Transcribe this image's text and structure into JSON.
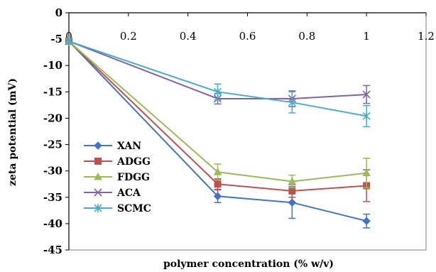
{
  "chart_data": {
    "type": "line",
    "title": "",
    "xlabel": "polymer concentration (% w/v)",
    "ylabel": "zeta potential (mV)",
    "xlim": [
      0,
      1.2
    ],
    "ylim": [
      -45,
      0
    ],
    "x_ticks": [
      "0",
      "0.2",
      "0.4",
      "0.6",
      "0.8",
      "1",
      "1.2"
    ],
    "y_ticks": [
      "0",
      "-5",
      "-10",
      "-15",
      "-20",
      "-25",
      "-30",
      "-35",
      "-40",
      "-45"
    ],
    "x_axis_position": "top",
    "grid": false,
    "legend_position": "bottom-left",
    "x": [
      0,
      0.5,
      0.75,
      1
    ],
    "series": [
      {
        "name": "XAN",
        "color": "#4472C4",
        "marker": "diamond",
        "values": [
          -5.4,
          -34.8,
          -36.0,
          -39.5
        ],
        "errors": [
          0.5,
          1.2,
          3.0,
          1.3
        ]
      },
      {
        "name": "ADGG",
        "color": "#C0504D",
        "marker": "square",
        "values": [
          -5.4,
          -32.5,
          -33.8,
          -32.8
        ],
        "errors": [
          0.5,
          1.0,
          1.2,
          3.0
        ]
      },
      {
        "name": "FDGG",
        "color": "#9BBB59",
        "marker": "triangle",
        "values": [
          -5.4,
          -30.2,
          -32.0,
          -30.4
        ],
        "errors": [
          0.5,
          1.5,
          1.2,
          2.8
        ]
      },
      {
        "name": "ACA",
        "color": "#8064A2",
        "marker": "x",
        "values": [
          -5.4,
          -16.3,
          -16.3,
          -15.5
        ],
        "errors": [
          0.5,
          1.0,
          1.5,
          1.7
        ]
      },
      {
        "name": "SCMC",
        "color": "#4BACC6",
        "marker": "asterisk",
        "values": [
          -5.4,
          -15.0,
          -17.0,
          -19.6
        ],
        "errors": [
          0.5,
          1.5,
          2.0,
          2.0
        ]
      }
    ]
  }
}
